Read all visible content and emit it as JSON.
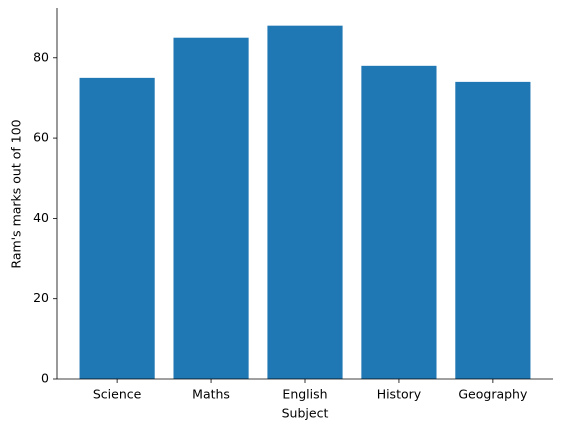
{
  "chart_data": {
    "type": "bar",
    "x_label": "Subject",
    "y_label": "Ram's marks out of 100",
    "categories": [
      "Science",
      "Maths",
      "English",
      "History",
      "Geography"
    ],
    "values": [
      75,
      85,
      88,
      78,
      74
    ],
    "color": "#1f77b4",
    "ylim": [
      0,
      92.4
    ],
    "yticks": [
      0,
      20,
      40,
      60,
      80
    ]
  }
}
